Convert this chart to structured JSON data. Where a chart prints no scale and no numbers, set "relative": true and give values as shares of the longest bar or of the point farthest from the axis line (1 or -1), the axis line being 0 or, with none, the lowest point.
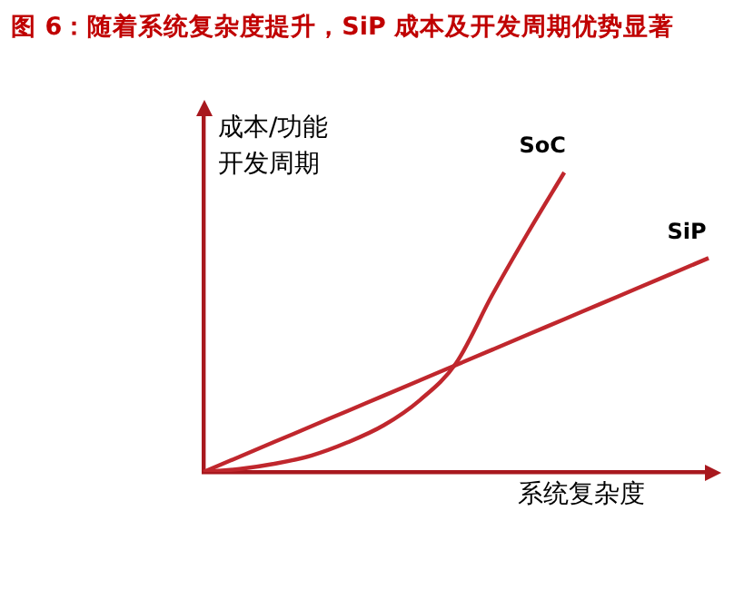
{
  "chart_data": {
    "type": "line",
    "title": "图 6：随着系统复杂度提升，SiP 成本及开发周期优势显著",
    "xlabel": "系统复杂度",
    "ylabel": "成本/功能开发周期",
    "relative": true,
    "legend": false,
    "grid": false,
    "categories": [
      null,
      null,
      null,
      null,
      null,
      null,
      null,
      null,
      null,
      null,
      null,
      null,
      null,
      null,
      null
    ],
    "series": [
      {
        "name": "SoC",
        "color": "#c0272d",
        "values": [
          0,
          0.01,
          0.028,
          0.055,
          0.099,
          0.156,
          0.24,
          0.363,
          0.59,
          0.8,
          1,
          null,
          null,
          null,
          null
        ]
      },
      {
        "name": "SiP",
        "color": "#c0272d",
        "values": [
          0,
          0.051,
          0.102,
          0.153,
          0.204,
          0.255,
          0.306,
          0.357,
          0.408,
          0.459,
          0.51,
          0.561,
          0.612,
          0.663,
          0.714
        ]
      }
    ]
  }
}
